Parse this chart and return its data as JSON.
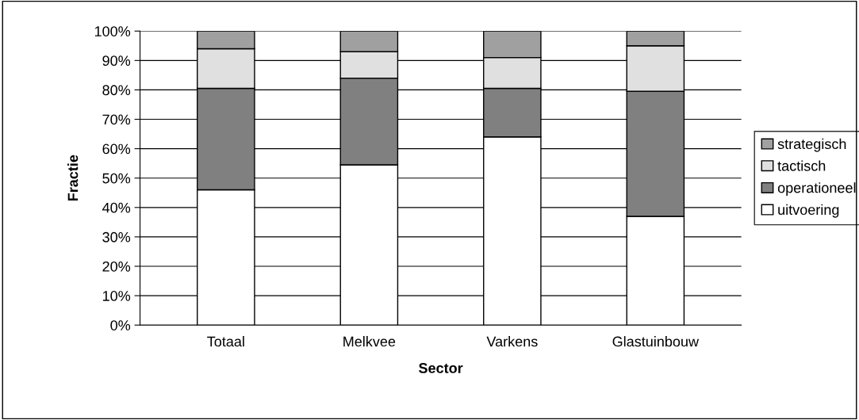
{
  "chart_data": {
    "type": "bar",
    "stacked": true,
    "xlabel": "Sector",
    "ylabel": "Fractie",
    "categories": [
      "Totaal",
      "Melkvee",
      "Varkens",
      "Glastuinbouw"
    ],
    "series": [
      {
        "name": "uitvoering",
        "color": "#ffffff",
        "values": [
          46,
          54.5,
          64,
          37
        ]
      },
      {
        "name": "operationeel",
        "color": "#808080",
        "values": [
          34.5,
          29.5,
          16.5,
          42.5
        ]
      },
      {
        "name": "tactisch",
        "color": "#e0e0e0",
        "values": [
          13.5,
          9,
          10.5,
          15.5
        ]
      },
      {
        "name": "strategisch",
        "color": "#a0a0a0",
        "values": [
          6,
          7,
          9,
          5
        ]
      }
    ],
    "ylim": [
      0,
      100
    ],
    "yticks": [
      {
        "value": 0,
        "label": "0%"
      },
      {
        "value": 10,
        "label": "10%"
      },
      {
        "value": 20,
        "label": "20%"
      },
      {
        "value": 30,
        "label": "30%"
      },
      {
        "value": 40,
        "label": "40%"
      },
      {
        "value": 50,
        "label": "50%"
      },
      {
        "value": 60,
        "label": "60%"
      },
      {
        "value": 70,
        "label": "70%"
      },
      {
        "value": 80,
        "label": "80%"
      },
      {
        "value": 90,
        "label": "90%"
      },
      {
        "value": 100,
        "label": "100%"
      }
    ],
    "grid": "y",
    "legend": "right"
  }
}
